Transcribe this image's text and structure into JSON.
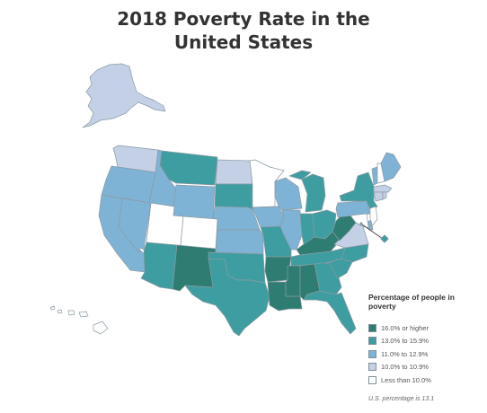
{
  "title_line1": "2018 Poverty Rate in the",
  "title_line2": "United States",
  "legend": {
    "title": "Percentage of people in poverty",
    "items": [
      {
        "label": "16.0% or higher",
        "color": "#2e7c72"
      },
      {
        "label": "13.0% to 15.9%",
        "color": "#3e9da0"
      },
      {
        "label": "11.0% to 12.9%",
        "color": "#7fb3d5"
      },
      {
        "label": "10.0% to 10.9%",
        "color": "#c4d0e6"
      },
      {
        "label": "Less than 10.0%",
        "color": "#ffffff"
      }
    ],
    "note": "U.S. percentage is 13.1"
  },
  "state_classes": {
    "WA": 3,
    "OR": 2,
    "CA": 2,
    "NV": 2,
    "ID": 2,
    "MT": 1,
    "WY": 2,
    "UT": 4,
    "CO": 4,
    "AZ": 1,
    "NM": 0,
    "ND": 3,
    "SD": 1,
    "NE": 2,
    "KS": 2,
    "OK": 1,
    "TX": 1,
    "MN": 4,
    "IA": 2,
    "MO": 1,
    "AR": 0,
    "LA": 0,
    "WI": 2,
    "IL": 2,
    "MI": 1,
    "IN": 1,
    "OH": 1,
    "KY": 0,
    "TN": 1,
    "MS": 0,
    "AL": 0,
    "GA": 1,
    "FL": 1,
    "SC": 1,
    "NC": 1,
    "VA": 3,
    "WV": 0,
    "PA": 2,
    "NY": 1,
    "VT": 2,
    "NH": 4,
    "ME": 2,
    "MA": 3,
    "CT": 3,
    "RI": 3,
    "NJ": 4,
    "DE": 2,
    "MD": 4,
    "DC": 1,
    "AK": 3,
    "HI": 4
  }
}
